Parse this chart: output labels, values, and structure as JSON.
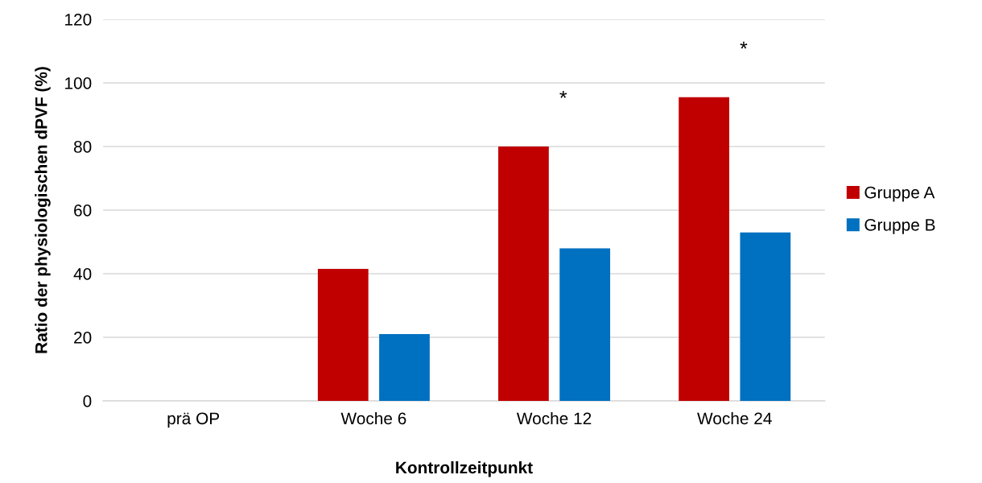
{
  "chart_data": {
    "type": "bar",
    "xlabel": "Kontrollzeitpunkt",
    "ylabel": "Ratio der physiologischen dPVF (%)",
    "categories": [
      "prä OP",
      "Woche 6",
      "Woche 12",
      "Woche 24"
    ],
    "series": [
      {
        "name": "Gruppe A",
        "color": "#c00000",
        "values": [
          null,
          41.5,
          80,
          95.5
        ]
      },
      {
        "name": "Gruppe B",
        "color": "#0070c0",
        "values": [
          null,
          21,
          48,
          53
        ]
      }
    ],
    "ylim": [
      0,
      120
    ],
    "yticks": [
      0,
      20,
      40,
      60,
      80,
      100,
      120
    ],
    "grid": "y",
    "legend": "right",
    "annotations": [
      "*",
      "*"
    ]
  }
}
